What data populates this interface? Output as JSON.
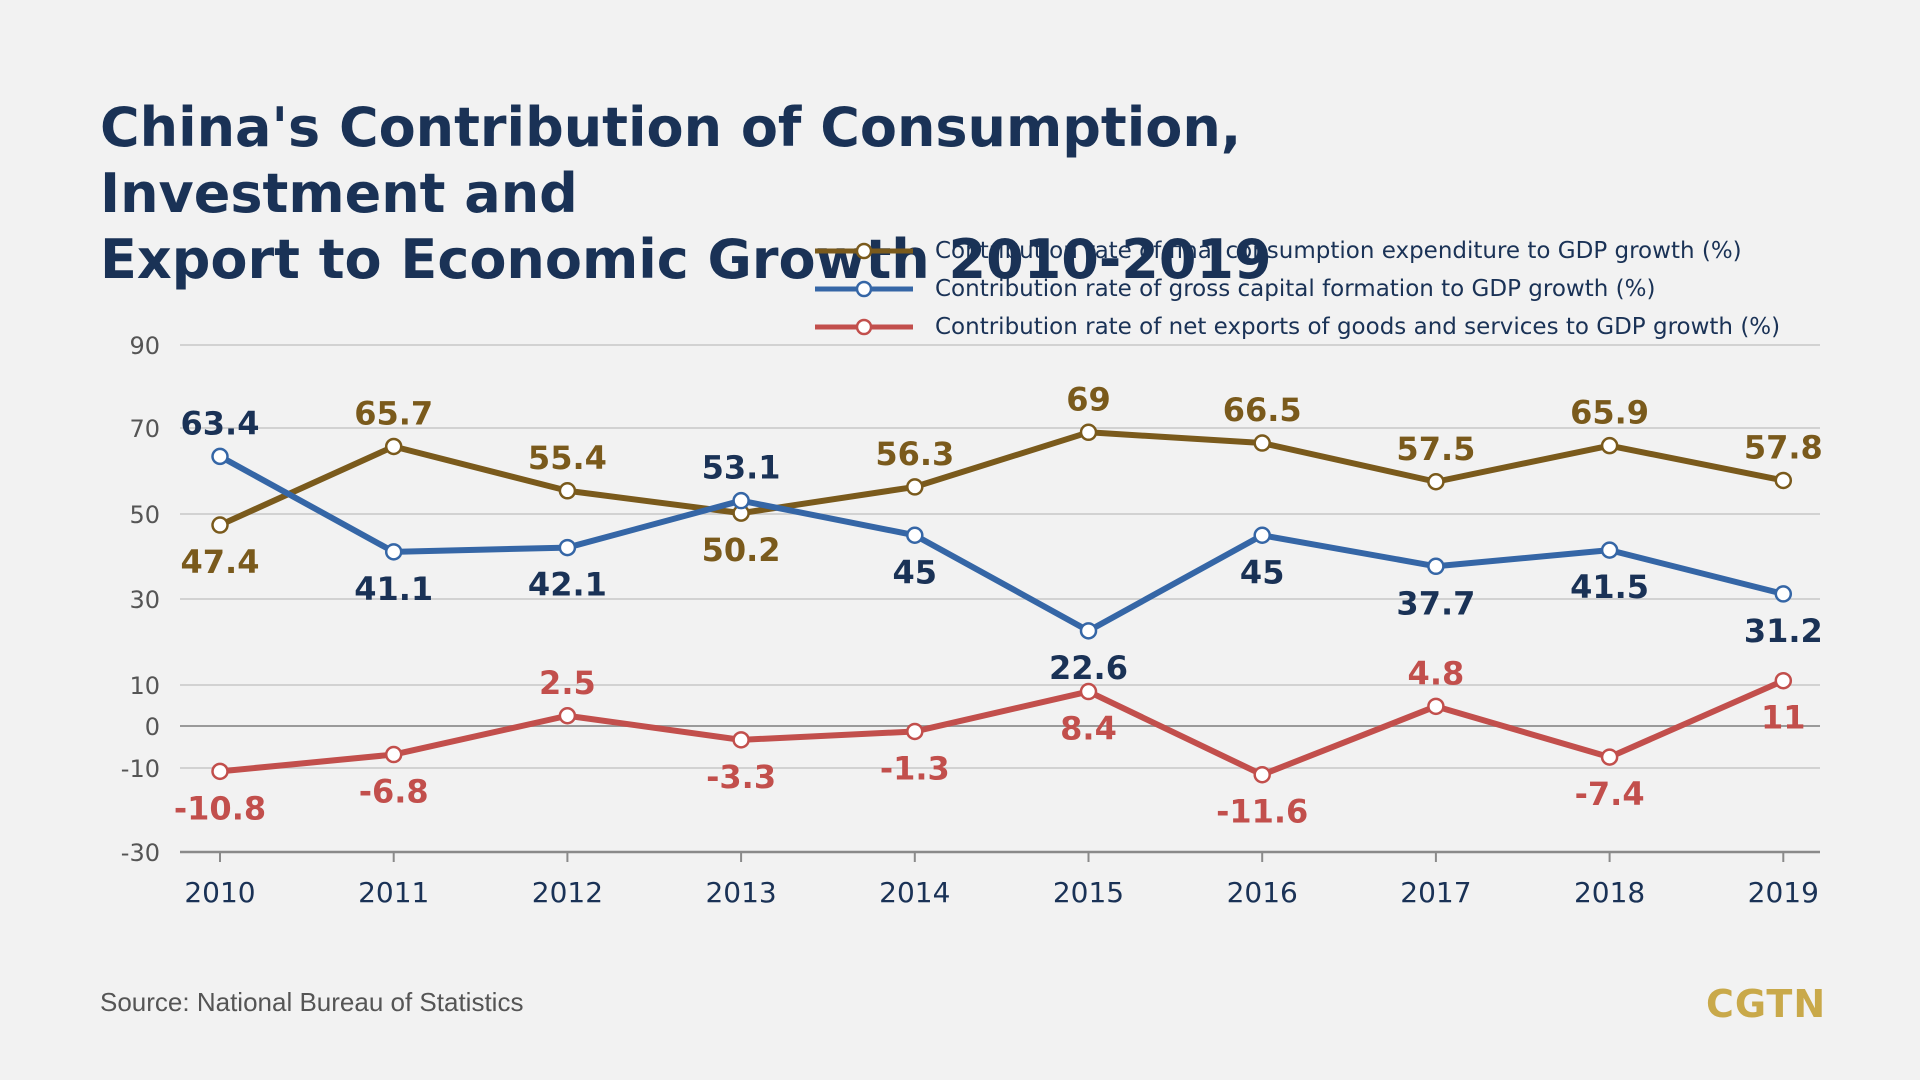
{
  "chart_data": {
    "type": "line",
    "title_lines": [
      "China's Contribution of Consumption, Investment and",
      "Export to Economic Growth 2010-2019"
    ],
    "x": [
      "2010",
      "2011",
      "2012",
      "2013",
      "2014",
      "2015",
      "2016",
      "2017",
      "2018",
      "2019"
    ],
    "y_ticks": [
      90,
      70,
      50,
      30,
      10,
      0,
      -10,
      -30
    ],
    "ylim": [
      -30,
      90
    ],
    "grid": true,
    "legend_position": "top-right",
    "series": [
      {
        "name": "Contribution rate of final consumption expenditure to GDP growth (%)",
        "color": "#7a5a1c",
        "label_color": "#7a5a1c",
        "values": [
          47.4,
          65.7,
          55.4,
          50.2,
          56.3,
          69,
          66.5,
          57.5,
          65.9,
          57.8
        ],
        "value_labels": [
          "47.4",
          "65.7",
          "55.4",
          "50.2",
          "56.3",
          "69",
          "66.5",
          "57.5",
          "65.9",
          "57.8"
        ],
        "label_positions": [
          "below",
          "above",
          "above",
          "below",
          "above",
          "above",
          "above",
          "above",
          "above",
          "above"
        ]
      },
      {
        "name": "Contribution rate of gross capital formation to GDP growth (%)",
        "color": "#3566a6",
        "label_color": "#1a3256",
        "values": [
          63.4,
          41.1,
          42.1,
          53.1,
          45,
          22.6,
          45,
          37.7,
          41.5,
          31.2
        ],
        "value_labels": [
          "63.4",
          "41.1",
          "42.1",
          "53.1",
          "45",
          "22.6",
          "45",
          "37.7",
          "41.5",
          "31.2"
        ],
        "label_positions": [
          "above",
          "below",
          "below",
          "above",
          "below",
          "below",
          "below",
          "below",
          "below",
          "below"
        ]
      },
      {
        "name": "Contribution rate of net exports of goods and services to GDP growth (%)",
        "color": "#c24f4c",
        "label_color": "#c24f4c",
        "values": [
          -10.8,
          -6.8,
          2.5,
          -3.3,
          -1.3,
          8.4,
          -11.6,
          4.8,
          -7.4,
          11
        ],
        "value_labels": [
          "-10.8",
          "-6.8",
          "2.5",
          "-3.3",
          "-1.3",
          "8.4",
          "-11.6",
          "4.8",
          "-7.4",
          "11"
        ],
        "label_positions": [
          "below",
          "below",
          "above",
          "below",
          "below",
          "below",
          "below",
          "above",
          "below",
          "below"
        ]
      }
    ]
  },
  "source": "Source: National Bureau of Statistics",
  "logo": "CGTN"
}
